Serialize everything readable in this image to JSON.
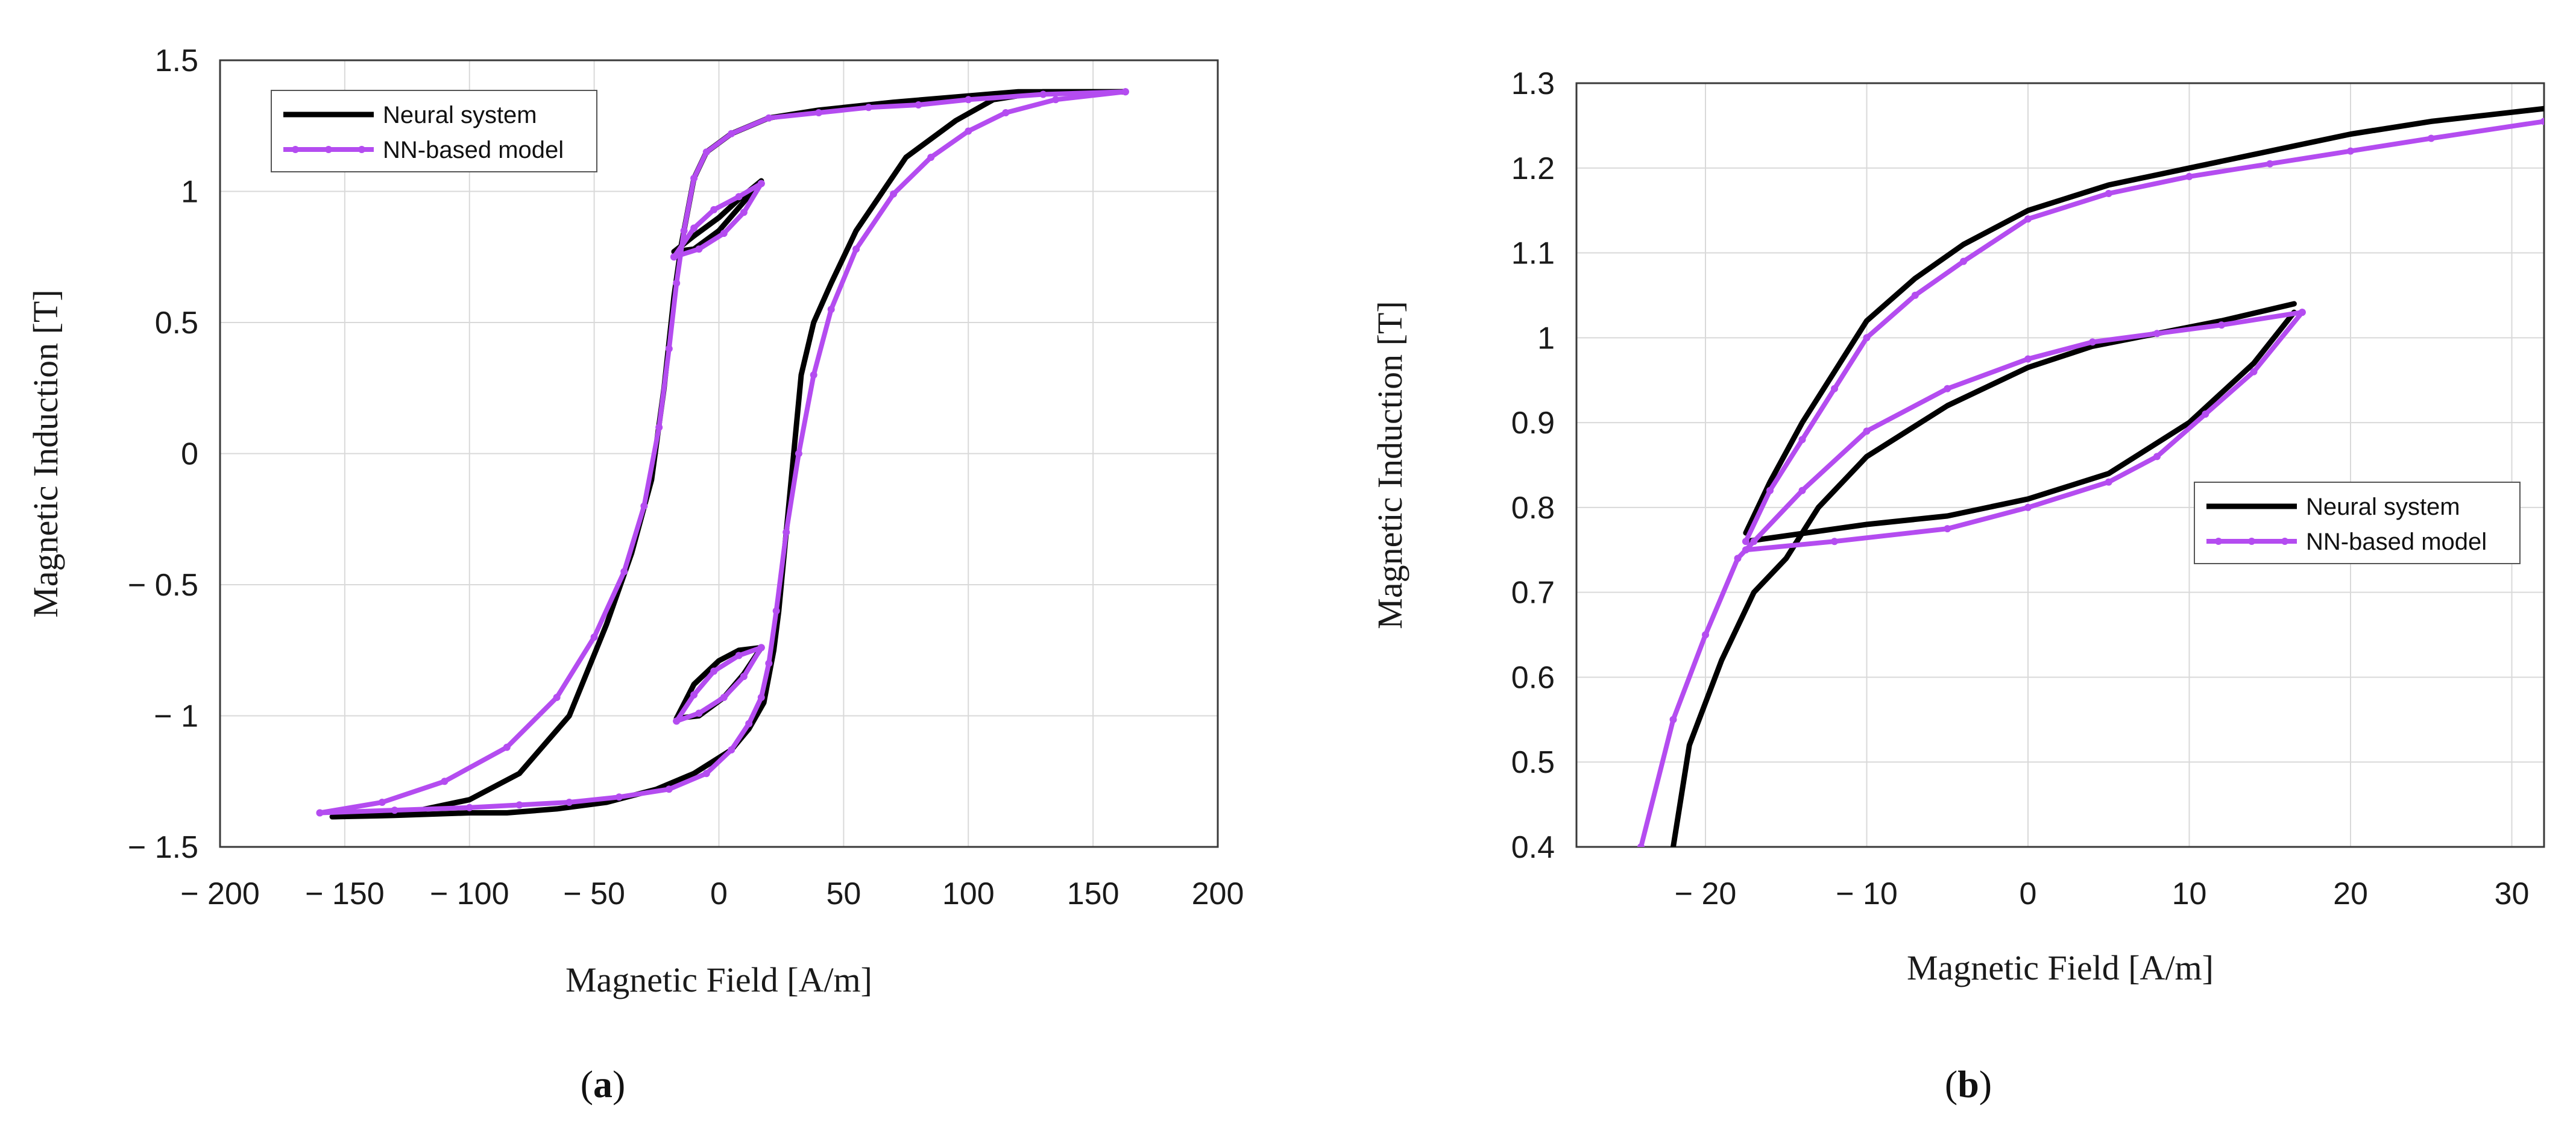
{
  "colors": {
    "neural": "#000000",
    "nn_model": "#b44cf0"
  },
  "chart_data": [
    {
      "type": "line",
      "xlabel": "Magnetic Field [A/m]",
      "ylabel": "Magnetic Induction [T]",
      "xlim": [
        -200,
        200
      ],
      "ylim": [
        -1.5,
        1.5
      ],
      "xticks": [
        -200,
        -150,
        -100,
        -50,
        0,
        50,
        100,
        150,
        200
      ],
      "yticks": [
        -1.5,
        -1,
        -0.5,
        0,
        0.5,
        1,
        1.5
      ],
      "xtick_labels": [
        "− 200",
        "− 150",
        "− 100",
        "− 50",
        "0",
        "50",
        "100",
        "150",
        "200"
      ],
      "ytick_labels": [
        "− 1.5",
        "− 1",
        "− 0.5",
        "0",
        "0.5",
        "1",
        "1.5"
      ],
      "grid": true,
      "legend_position": "top-left",
      "caption": "a",
      "series": [
        {
          "name": "Neural system",
          "color": "#000000",
          "markers": false,
          "segments": [
            [
              [
                -155,
                -1.385
              ],
              [
                -130,
                -1.38
              ],
              [
                -100,
                -1.37
              ],
              [
                -85,
                -1.37
              ],
              [
                -65,
                -1.355
              ],
              [
                -45,
                -1.33
              ],
              [
                -25,
                -1.28
              ],
              [
                -10,
                -1.22
              ],
              [
                5,
                -1.13
              ],
              [
                12,
                -1.05
              ],
              [
                18,
                -0.95
              ],
              [
                22,
                -0.75
              ],
              [
                24,
                -0.6
              ],
              [
                28,
                -0.2
              ],
              [
                33,
                0.3
              ],
              [
                38,
                0.5
              ],
              [
                45,
                0.65
              ],
              [
                55,
                0.85
              ],
              [
                75,
                1.13
              ],
              [
                95,
                1.27
              ],
              [
                110,
                1.35
              ],
              [
                130,
                1.38
              ],
              [
                162,
                1.38
              ]
            ],
            [
              [
                162,
                1.38
              ],
              [
                120,
                1.38
              ],
              [
                95,
                1.36
              ],
              [
                70,
                1.34
              ],
              [
                40,
                1.31
              ],
              [
                20,
                1.28
              ],
              [
                5,
                1.22
              ],
              [
                -5,
                1.15
              ],
              [
                -10,
                1.05
              ],
              [
                -15,
                0.8
              ],
              [
                -18,
                0.6
              ],
              [
                -22,
                0.25
              ],
              [
                -27,
                -0.1
              ],
              [
                -35,
                -0.38
              ],
              [
                -45,
                -0.65
              ],
              [
                -60,
                -1.0
              ],
              [
                -80,
                -1.22
              ],
              [
                -100,
                -1.32
              ],
              [
                -125,
                -1.37
              ],
              [
                -155,
                -1.385
              ]
            ],
            [
              [
                -18,
                0.77
              ],
              [
                -10,
                0.83
              ],
              [
                0,
                0.9
              ],
              [
                8,
                0.97
              ],
              [
                17,
                1.04
              ]
            ],
            [
              [
                17,
                1.04
              ],
              [
                10,
                0.96
              ],
              [
                0,
                0.85
              ],
              [
                -10,
                0.78
              ],
              [
                -18,
                0.77
              ]
            ],
            [
              [
                -17,
                -1.01
              ],
              [
                -8,
                -1.0
              ],
              [
                2,
                -0.93
              ],
              [
                10,
                -0.84
              ],
              [
                17,
                -0.74
              ]
            ],
            [
              [
                17,
                -0.74
              ],
              [
                8,
                -0.75
              ],
              [
                0,
                -0.79
              ],
              [
                -10,
                -0.88
              ],
              [
                -17,
                -1.01
              ]
            ]
          ]
        },
        {
          "name": "NN-based model",
          "color": "#b44cf0",
          "markers": true,
          "segments": [
            [
              [
                -160,
                -1.37
              ],
              [
                -130,
                -1.36
              ],
              [
                -100,
                -1.35
              ],
              [
                -80,
                -1.34
              ],
              [
                -60,
                -1.33
              ],
              [
                -40,
                -1.31
              ],
              [
                -20,
                -1.28
              ],
              [
                -5,
                -1.22
              ],
              [
                5,
                -1.13
              ],
              [
                12,
                -1.03
              ],
              [
                17,
                -0.93
              ],
              [
                20,
                -0.8
              ],
              [
                23,
                -0.6
              ],
              [
                27,
                -0.3
              ],
              [
                32,
                0.0
              ],
              [
                38,
                0.3
              ],
              [
                45,
                0.55
              ],
              [
                55,
                0.78
              ],
              [
                70,
                0.99
              ],
              [
                85,
                1.13
              ],
              [
                100,
                1.23
              ],
              [
                115,
                1.3
              ],
              [
                135,
                1.35
              ],
              [
                163,
                1.38
              ]
            ],
            [
              [
                163,
                1.38
              ],
              [
                130,
                1.37
              ],
              [
                100,
                1.35
              ],
              [
                80,
                1.33
              ],
              [
                60,
                1.32
              ],
              [
                40,
                1.3
              ],
              [
                20,
                1.28
              ],
              [
                5,
                1.22
              ],
              [
                -5,
                1.15
              ],
              [
                -10,
                1.05
              ],
              [
                -14,
                0.85
              ],
              [
                -17,
                0.65
              ],
              [
                -20,
                0.4
              ],
              [
                -24,
                0.1
              ],
              [
                -30,
                -0.2
              ],
              [
                -38,
                -0.45
              ],
              [
                -50,
                -0.7
              ],
              [
                -65,
                -0.93
              ],
              [
                -85,
                -1.12
              ],
              [
                -110,
                -1.25
              ],
              [
                -135,
                -1.33
              ],
              [
                -160,
                -1.37
              ]
            ],
            [
              [
                -18,
                0.75
              ],
              [
                -10,
                0.86
              ],
              [
                -2,
                0.93
              ],
              [
                8,
                0.98
              ],
              [
                17,
                1.03
              ]
            ],
            [
              [
                17,
                1.03
              ],
              [
                10,
                0.92
              ],
              [
                2,
                0.84
              ],
              [
                -8,
                0.78
              ],
              [
                -18,
                0.75
              ]
            ],
            [
              [
                -17,
                -1.02
              ],
              [
                -10,
                -0.92
              ],
              [
                -2,
                -0.83
              ],
              [
                8,
                -0.77
              ],
              [
                17,
                -0.74
              ]
            ],
            [
              [
                17,
                -0.74
              ],
              [
                10,
                -0.85
              ],
              [
                2,
                -0.93
              ],
              [
                -8,
                -0.99
              ],
              [
                -17,
                -1.02
              ]
            ]
          ]
        }
      ]
    },
    {
      "type": "line",
      "xlabel": "Magnetic Field [A/m]",
      "ylabel": "Magnetic Induction [T]",
      "xlim": [
        -28,
        32
      ],
      "ylim": [
        0.4,
        1.3
      ],
      "xticks": [
        -20,
        -10,
        0,
        10,
        20,
        30
      ],
      "yticks": [
        0.4,
        0.5,
        0.6,
        0.7,
        0.8,
        0.9,
        1.0,
        1.1,
        1.2,
        1.3
      ],
      "xtick_labels": [
        "− 20",
        "− 10",
        "0",
        "10",
        "20",
        "30"
      ],
      "ytick_labels": [
        "0.4",
        "0.5",
        "0.6",
        "0.7",
        "0.8",
        "0.9",
        "1",
        "1.1",
        "1.2",
        "1.3"
      ],
      "grid": true,
      "legend_position": "right",
      "caption": "b",
      "series": [
        {
          "name": "Neural system",
          "color": "#000000",
          "markers": false,
          "segments": [
            [
              [
                -17.5,
                0.77
              ],
              [
                -16,
                0.83
              ],
              [
                -14,
                0.9
              ],
              [
                -12,
                0.96
              ],
              [
                -10,
                1.02
              ],
              [
                -7,
                1.07
              ],
              [
                -4,
                1.11
              ],
              [
                0,
                1.15
              ],
              [
                5,
                1.18
              ],
              [
                10,
                1.2
              ],
              [
                15,
                1.22
              ],
              [
                20,
                1.24
              ],
              [
                25,
                1.255
              ],
              [
                32,
                1.27
              ]
            ],
            [
              [
                -17.5,
                0.76
              ],
              [
                -10,
                0.78
              ],
              [
                -5,
                0.79
              ],
              [
                0,
                0.81
              ],
              [
                5,
                0.84
              ],
              [
                10,
                0.9
              ],
              [
                14,
                0.97
              ],
              [
                16.5,
                1.03
              ]
            ],
            [
              [
                16.5,
                1.04
              ],
              [
                12,
                1.02
              ],
              [
                8,
                1.005
              ],
              [
                4,
                0.99
              ],
              [
                0,
                0.965
              ],
              [
                -5,
                0.92
              ],
              [
                -10,
                0.86
              ],
              [
                -13,
                0.8
              ],
              [
                -15,
                0.74
              ],
              [
                -17,
                0.7
              ],
              [
                -19,
                0.62
              ],
              [
                -21,
                0.52
              ],
              [
                -22,
                0.4
              ]
            ]
          ]
        },
        {
          "name": "NN-based model",
          "color": "#b44cf0",
          "markers": true,
          "segments": [
            [
              [
                -17.5,
                0.76
              ],
              [
                -16,
                0.82
              ],
              [
                -14,
                0.88
              ],
              [
                -12,
                0.94
              ],
              [
                -10,
                1.0
              ],
              [
                -7,
                1.05
              ],
              [
                -4,
                1.09
              ],
              [
                0,
                1.14
              ],
              [
                5,
                1.17
              ],
              [
                10,
                1.19
              ],
              [
                15,
                1.205
              ],
              [
                20,
                1.22
              ],
              [
                25,
                1.235
              ],
              [
                32,
                1.255
              ]
            ],
            [
              [
                -17.5,
                0.75
              ],
              [
                -12,
                0.76
              ],
              [
                -5,
                0.775
              ],
              [
                0,
                0.8
              ],
              [
                5,
                0.83
              ],
              [
                8,
                0.86
              ],
              [
                11,
                0.91
              ],
              [
                14,
                0.96
              ],
              [
                17,
                1.03
              ]
            ],
            [
              [
                17,
                1.03
              ],
              [
                12,
                1.015
              ],
              [
                8,
                1.005
              ],
              [
                4,
                0.995
              ],
              [
                0,
                0.975
              ],
              [
                -5,
                0.94
              ],
              [
                -10,
                0.89
              ],
              [
                -14,
                0.82
              ],
              [
                -17,
                0.76
              ],
              [
                -18,
                0.74
              ],
              [
                -20,
                0.65
              ],
              [
                -22,
                0.55
              ],
              [
                -24,
                0.4
              ]
            ]
          ]
        }
      ]
    }
  ]
}
